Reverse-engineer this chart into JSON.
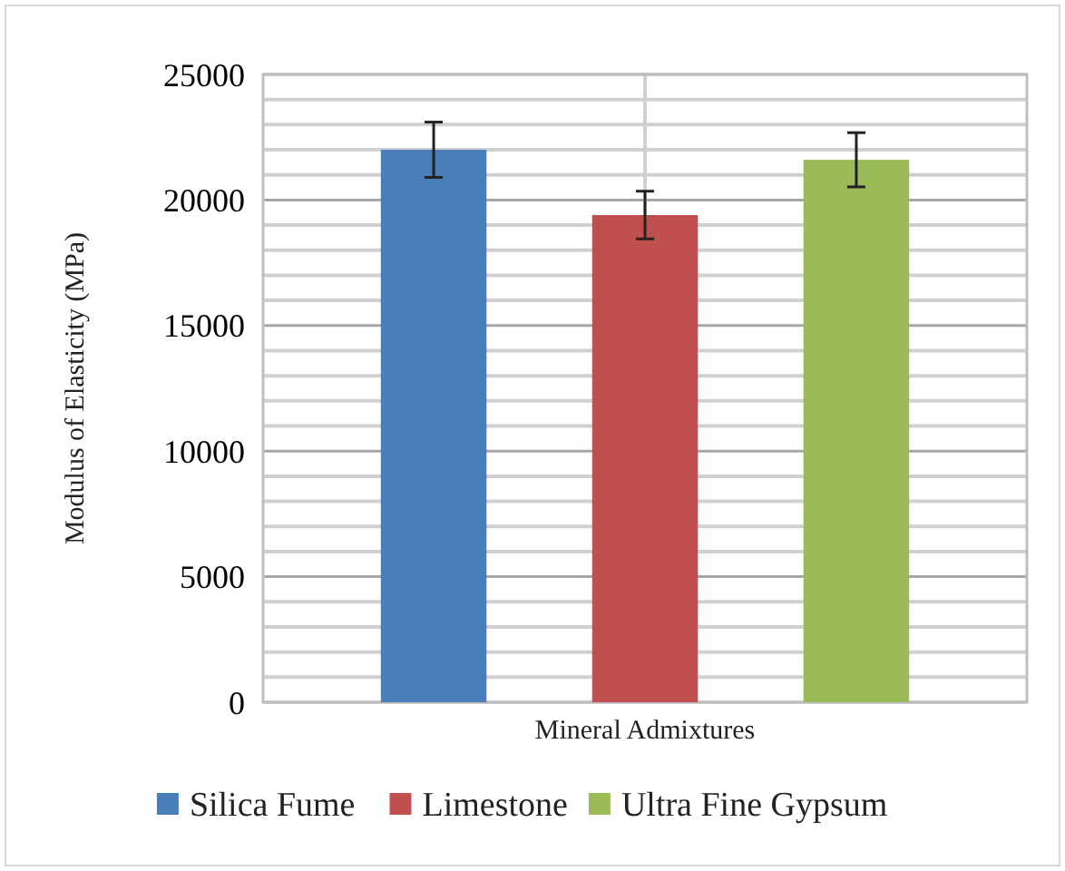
{
  "chart_data": {
    "type": "bar",
    "categories": [
      "Mineral Admixtures"
    ],
    "ylabel": "Modulus of Elasticity (MPa)",
    "series": [
      {
        "name": "Silica Fume",
        "color": "#4a7ebb",
        "values": [
          22000
        ],
        "errors": [
          1100
        ]
      },
      {
        "name": "Limestone",
        "color": "#c0504d",
        "values": [
          19400
        ],
        "errors": [
          950
        ]
      },
      {
        "name": "Ultra Fine Gypsum",
        "color": "#9bbb59",
        "values": [
          21600
        ],
        "errors": [
          1080
        ]
      }
    ],
    "ylim": [
      0,
      25000
    ],
    "yticks": [
      0,
      {
        "value": 1000,
        "label": null
      },
      {
        "value": 2000,
        "label": null
      },
      {
        "value": 3000,
        "label": null
      },
      {
        "value": 4000,
        "label": null
      },
      5000,
      {
        "value": 6000,
        "label": null
      },
      {
        "value": 7000,
        "label": null
      },
      {
        "value": 8000,
        "label": null
      },
      {
        "value": 9000,
        "label": null
      },
      10000,
      {
        "value": 11000,
        "label": null
      },
      {
        "value": 12000,
        "label": null
      },
      {
        "value": 13000,
        "label": null
      },
      {
        "value": 14000,
        "label": null
      },
      15000,
      {
        "value": 16000,
        "label": null
      },
      {
        "value": 17000,
        "label": null
      },
      {
        "value": 18000,
        "label": null
      },
      {
        "value": 19000,
        "label": null
      },
      20000,
      {
        "value": 21000,
        "label": null
      },
      {
        "value": 22000,
        "label": null
      },
      {
        "value": 23000,
        "label": null
      },
      {
        "value": 24000,
        "label": null
      },
      25000
    ],
    "grid": true,
    "legend": "bottom"
  }
}
